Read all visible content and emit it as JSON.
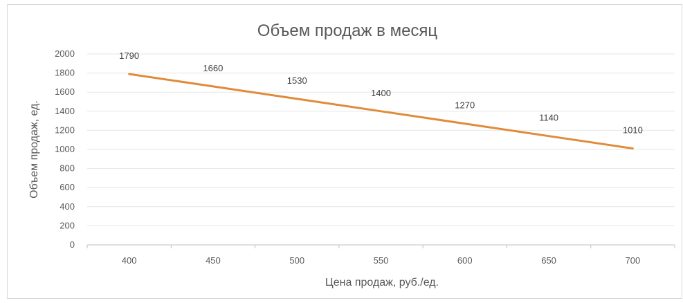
{
  "chart_data": {
    "type": "line",
    "title": "Объем продаж в месяц",
    "xlabel": "Цена продаж, руб./ед.",
    "ylabel": "Объем продаж, ед.",
    "x": [
      400,
      450,
      500,
      550,
      600,
      650,
      700
    ],
    "x_ticks": [
      "400",
      "450",
      "500",
      "550",
      "600",
      "650",
      "700"
    ],
    "y_ticks": [
      "0",
      "200",
      "400",
      "600",
      "800",
      "1000",
      "1200",
      "1400",
      "1600",
      "1800",
      "2000"
    ],
    "ylim": [
      0,
      2000
    ],
    "grid": true,
    "series": [
      {
        "values": [
          1790,
          1660,
          1530,
          1400,
          1270,
          1140,
          1010
        ],
        "data_labels": [
          "1790",
          "1660",
          "1530",
          "1400",
          "1270",
          "1140",
          "1010"
        ],
        "color": "#e08b3a"
      }
    ]
  }
}
